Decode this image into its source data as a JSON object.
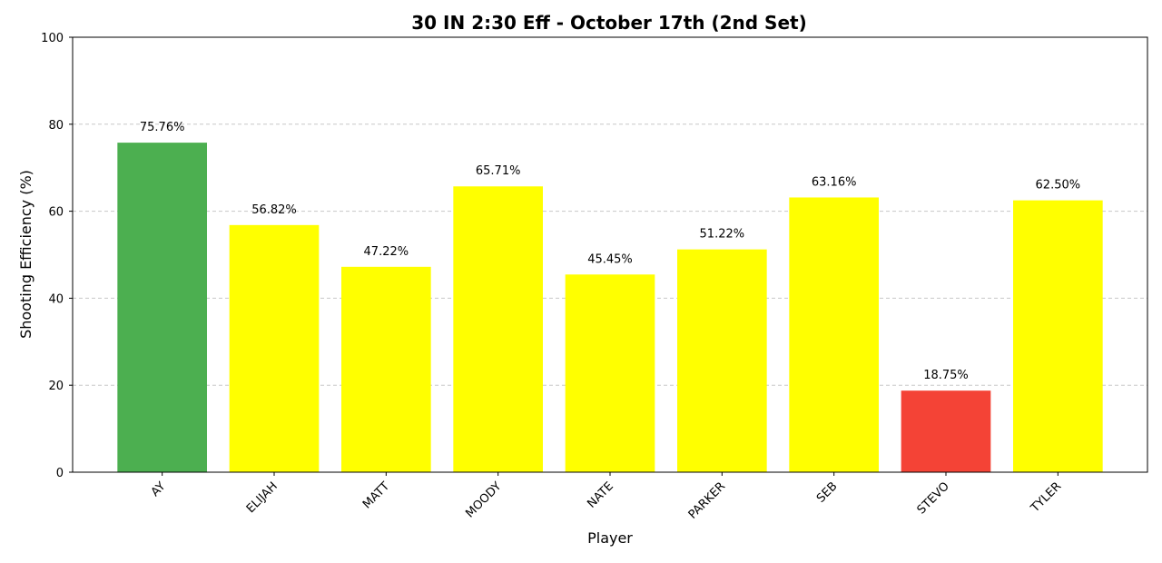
{
  "chart_data": {
    "type": "bar",
    "title": "30 IN 2:30 Eff - October 17th (2nd Set)",
    "xlabel": "Player",
    "ylabel": "Shooting Efficiency (%)",
    "ylim": [
      0,
      100
    ],
    "yticks": [
      0,
      20,
      40,
      60,
      80,
      100
    ],
    "grid": "y-dashed",
    "categories": [
      "AY",
      "ELIJAH",
      "MATT",
      "MOODY",
      "NATE",
      "PARKER",
      "SEB",
      "STEVO",
      "TYLER"
    ],
    "values": [
      75.76,
      56.82,
      47.22,
      65.71,
      45.45,
      51.22,
      63.16,
      18.75,
      62.5
    ],
    "value_labels": [
      "75.76%",
      "56.82%",
      "47.22%",
      "65.71%",
      "45.45%",
      "51.22%",
      "63.16%",
      "18.75%",
      "62.50%"
    ],
    "bar_colors": [
      "#4caf50",
      "#ffff00",
      "#ffff00",
      "#ffff00",
      "#ffff00",
      "#ffff00",
      "#ffff00",
      "#f44336",
      "#ffff00"
    ]
  }
}
